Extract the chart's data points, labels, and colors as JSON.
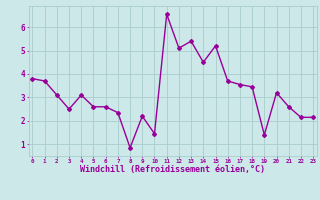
{
  "x": [
    0,
    1,
    2,
    3,
    4,
    5,
    6,
    7,
    8,
    9,
    10,
    11,
    12,
    13,
    14,
    15,
    16,
    17,
    18,
    19,
    20,
    21,
    22,
    23
  ],
  "y": [
    3.8,
    3.7,
    3.1,
    2.5,
    3.1,
    2.6,
    2.6,
    2.35,
    0.85,
    2.2,
    1.45,
    6.55,
    5.1,
    5.4,
    4.5,
    5.2,
    3.7,
    3.55,
    3.45,
    1.4,
    3.2,
    2.6,
    2.15,
    2.15
  ],
  "line_color": "#990099",
  "marker": "D",
  "markersize": 2,
  "linewidth": 1.0,
  "xlabel": "Windchill (Refroidissement éolien,°C)",
  "xlabel_fontsize": 6,
  "yticks": [
    1,
    2,
    3,
    4,
    5,
    6
  ],
  "xticks": [
    0,
    1,
    2,
    3,
    4,
    5,
    6,
    7,
    8,
    9,
    10,
    11,
    12,
    13,
    14,
    15,
    16,
    17,
    18,
    19,
    20,
    21,
    22,
    23
  ],
  "xlim": [
    -0.3,
    23.3
  ],
  "ylim": [
    0.5,
    6.9
  ],
  "bg_color": "#cce8e8",
  "grid_color": "#aacccc",
  "tick_label_color": "#990099",
  "xlabel_color": "#990099"
}
